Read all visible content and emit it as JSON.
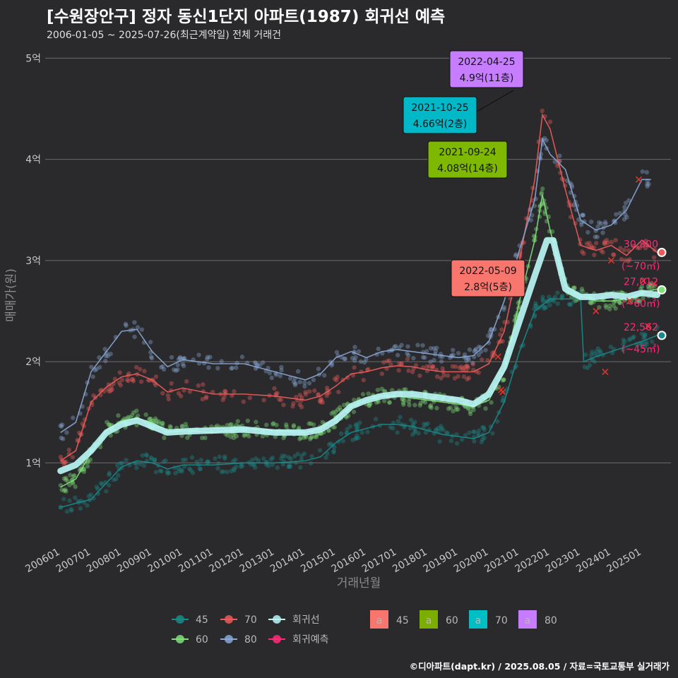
{
  "title": "[수원장안구] 정자 동신1단지 아파트(1987) 회귀선 예측",
  "subtitle": "2006-01-05 ~ 2025-07-26(최근계약일) 전체 거래건",
  "footer": "©디아파트(dapt.kr) / 2025.08.05 / 자료=국토교통부 실거래가",
  "chart_data": {
    "type": "scatter",
    "xlabel": "거래년월",
    "ylabel": "매매가(원)",
    "y_ticks": [
      {
        "v": 1,
        "label": "1억"
      },
      {
        "v": 2,
        "label": "2억"
      },
      {
        "v": 3,
        "label": "3억"
      },
      {
        "v": 4,
        "label": "4억"
      },
      {
        "v": 5,
        "label": "5억"
      }
    ],
    "ylim": [
      0.2,
      5.1
    ],
    "xlim": [
      2005.5,
      2025.95
    ],
    "x_ticks": [
      "200601",
      "200701",
      "200801",
      "200901",
      "201001",
      "201101",
      "201201",
      "201301",
      "201401",
      "201501",
      "201601",
      "201701",
      "201801",
      "201901",
      "202001",
      "202101",
      "202201",
      "202301",
      "202401",
      "202501"
    ],
    "colors": {
      "45": "#1a8a8a",
      "60": "#7fe07a",
      "70": "#ef5b5b",
      "80": "#8aa7d6",
      "trend": "#b8f4f4",
      "forecast": "#ff2a78"
    },
    "series": [
      {
        "name": "45",
        "color": "#1a8a8a",
        "points": [
          [
            2006.0,
            0.56
          ],
          [
            2006.5,
            0.6
          ],
          [
            2007.0,
            0.64
          ],
          [
            2007.5,
            0.8
          ],
          [
            2008.0,
            0.96
          ],
          [
            2008.5,
            1.02
          ],
          [
            2009.0,
            1.0
          ],
          [
            2009.5,
            0.94
          ],
          [
            2010.0,
            0.98
          ],
          [
            2011.0,
            0.98
          ],
          [
            2012.0,
            1.0
          ],
          [
            2013.0,
            1.0
          ],
          [
            2014.0,
            1.02
          ],
          [
            2014.5,
            1.06
          ],
          [
            2015.0,
            1.2
          ],
          [
            2015.5,
            1.3
          ],
          [
            2016.0,
            1.34
          ],
          [
            2016.5,
            1.38
          ],
          [
            2017.0,
            1.38
          ],
          [
            2017.5,
            1.36
          ],
          [
            2018.0,
            1.32
          ],
          [
            2018.5,
            1.28
          ],
          [
            2019.0,
            1.26
          ],
          [
            2019.5,
            1.24
          ],
          [
            2020.0,
            1.3
          ],
          [
            2020.5,
            1.6
          ],
          [
            2021.0,
            2.1
          ],
          [
            2021.5,
            2.5
          ],
          [
            2022.0,
            2.62
          ],
          [
            2022.5,
            2.62
          ],
          [
            2023.0,
            2.62
          ],
          [
            2023.1,
            2.0
          ],
          [
            2023.5,
            2.05
          ],
          [
            2024.0,
            2.1
          ],
          [
            2024.5,
            2.15
          ],
          [
            2025.0,
            2.2
          ],
          [
            2025.5,
            2.26
          ]
        ]
      },
      {
        "name": "60",
        "color": "#7fe07a",
        "points": [
          [
            2006.0,
            0.76
          ],
          [
            2006.5,
            0.84
          ],
          [
            2007.0,
            1.1
          ],
          [
            2007.5,
            1.32
          ],
          [
            2008.0,
            1.42
          ],
          [
            2008.5,
            1.44
          ],
          [
            2009.0,
            1.4
          ],
          [
            2009.5,
            1.3
          ],
          [
            2010.0,
            1.32
          ],
          [
            2011.0,
            1.3
          ],
          [
            2012.0,
            1.34
          ],
          [
            2013.0,
            1.32
          ],
          [
            2014.0,
            1.3
          ],
          [
            2014.5,
            1.34
          ],
          [
            2015.0,
            1.44
          ],
          [
            2015.5,
            1.56
          ],
          [
            2016.0,
            1.62
          ],
          [
            2016.5,
            1.66
          ],
          [
            2017.0,
            1.66
          ],
          [
            2017.5,
            1.64
          ],
          [
            2018.0,
            1.62
          ],
          [
            2018.5,
            1.6
          ],
          [
            2019.0,
            1.58
          ],
          [
            2019.5,
            1.56
          ],
          [
            2020.0,
            1.62
          ],
          [
            2020.5,
            1.9
          ],
          [
            2021.0,
            2.6
          ],
          [
            2021.5,
            3.2
          ],
          [
            2021.75,
            3.65
          ],
          [
            2022.0,
            3.3
          ],
          [
            2022.5,
            2.75
          ],
          [
            2023.0,
            2.65
          ],
          [
            2023.5,
            2.6
          ],
          [
            2024.0,
            2.6
          ],
          [
            2024.5,
            2.62
          ],
          [
            2025.0,
            2.68
          ],
          [
            2025.5,
            2.72
          ]
        ]
      },
      {
        "name": "70",
        "color": "#ef5b5b",
        "points": [
          [
            2006.0,
            1.02
          ],
          [
            2006.5,
            1.12
          ],
          [
            2007.0,
            1.6
          ],
          [
            2007.5,
            1.75
          ],
          [
            2008.0,
            1.85
          ],
          [
            2008.5,
            1.88
          ],
          [
            2009.0,
            1.82
          ],
          [
            2009.5,
            1.7
          ],
          [
            2010.0,
            1.74
          ],
          [
            2011.0,
            1.68
          ],
          [
            2012.0,
            1.68
          ],
          [
            2013.0,
            1.66
          ],
          [
            2014.0,
            1.62
          ],
          [
            2014.5,
            1.66
          ],
          [
            2015.0,
            1.76
          ],
          [
            2015.5,
            1.88
          ],
          [
            2016.0,
            1.9
          ],
          [
            2016.5,
            1.94
          ],
          [
            2017.0,
            1.96
          ],
          [
            2017.5,
            1.95
          ],
          [
            2018.0,
            1.92
          ],
          [
            2018.5,
            1.9
          ],
          [
            2019.0,
            1.9
          ],
          [
            2019.5,
            1.9
          ],
          [
            2020.0,
            1.98
          ],
          [
            2020.5,
            2.3
          ],
          [
            2021.0,
            3.0
          ],
          [
            2021.5,
            3.8
          ],
          [
            2021.75,
            4.44
          ],
          [
            2022.0,
            4.3
          ],
          [
            2022.5,
            3.7
          ],
          [
            2023.0,
            3.15
          ],
          [
            2023.5,
            3.1
          ],
          [
            2024.0,
            3.15
          ],
          [
            2024.5,
            3.05
          ],
          [
            2025.0,
            3.2
          ],
          [
            2025.5,
            3.08
          ]
        ]
      },
      {
        "name": "80",
        "color": "#8aa7d6",
        "points": [
          [
            2006.0,
            1.3
          ],
          [
            2006.5,
            1.4
          ],
          [
            2007.0,
            1.9
          ],
          [
            2007.5,
            2.1
          ],
          [
            2008.0,
            2.3
          ],
          [
            2008.5,
            2.32
          ],
          [
            2009.0,
            2.1
          ],
          [
            2009.5,
            1.95
          ],
          [
            2010.0,
            2.02
          ],
          [
            2011.0,
            1.98
          ],
          [
            2012.0,
            1.98
          ],
          [
            2013.0,
            1.9
          ],
          [
            2014.0,
            1.82
          ],
          [
            2014.5,
            1.88
          ],
          [
            2015.0,
            2.04
          ],
          [
            2015.5,
            2.1
          ],
          [
            2016.0,
            2.04
          ],
          [
            2016.5,
            2.1
          ],
          [
            2017.0,
            2.12
          ],
          [
            2017.5,
            2.1
          ],
          [
            2018.0,
            2.08
          ],
          [
            2018.5,
            2.06
          ],
          [
            2019.0,
            2.04
          ],
          [
            2019.5,
            2.06
          ],
          [
            2020.0,
            2.2
          ],
          [
            2020.5,
            2.6
          ],
          [
            2021.0,
            3.1
          ],
          [
            2021.5,
            3.6
          ],
          [
            2021.75,
            4.2
          ],
          [
            2022.0,
            4.05
          ],
          [
            2022.5,
            3.9
          ],
          [
            2023.0,
            3.4
          ],
          [
            2023.5,
            3.3
          ],
          [
            2024.0,
            3.35
          ],
          [
            2024.5,
            3.5
          ],
          [
            2025.0,
            3.8
          ],
          [
            2025.3,
            3.8
          ]
        ]
      },
      {
        "name": "회귀선",
        "color": "#b8f4f4",
        "points": [
          [
            2006.0,
            0.92
          ],
          [
            2006.5,
            0.98
          ],
          [
            2007.0,
            1.12
          ],
          [
            2007.5,
            1.3
          ],
          [
            2008.0,
            1.38
          ],
          [
            2008.5,
            1.42
          ],
          [
            2009.0,
            1.36
          ],
          [
            2009.5,
            1.3
          ],
          [
            2010.0,
            1.31
          ],
          [
            2011.0,
            1.32
          ],
          [
            2012.0,
            1.33
          ],
          [
            2013.0,
            1.3
          ],
          [
            2014.0,
            1.3
          ],
          [
            2014.5,
            1.33
          ],
          [
            2015.0,
            1.42
          ],
          [
            2015.5,
            1.56
          ],
          [
            2016.0,
            1.62
          ],
          [
            2016.5,
            1.66
          ],
          [
            2017.0,
            1.68
          ],
          [
            2017.5,
            1.68
          ],
          [
            2018.0,
            1.66
          ],
          [
            2018.5,
            1.64
          ],
          [
            2019.0,
            1.62
          ],
          [
            2019.5,
            1.58
          ],
          [
            2020.0,
            1.68
          ],
          [
            2020.5,
            1.95
          ],
          [
            2021.0,
            2.4
          ],
          [
            2021.5,
            2.85
          ],
          [
            2021.9,
            3.2
          ],
          [
            2022.1,
            3.2
          ],
          [
            2022.5,
            2.72
          ],
          [
            2023.0,
            2.64
          ],
          [
            2023.5,
            2.64
          ],
          [
            2024.0,
            2.66
          ],
          [
            2024.5,
            2.64
          ],
          [
            2025.0,
            2.68
          ],
          [
            2025.5,
            2.66
          ]
        ]
      }
    ],
    "forecast": [
      {
        "area": "45",
        "value": "22,562",
        "unit": "(~45㎡)",
        "y": 2.26
      },
      {
        "area": "60",
        "value": "27,012",
        "unit": "(~60㎡)",
        "y": 2.71
      },
      {
        "area": "70",
        "value": "30,800",
        "unit": "(~70㎡)",
        "y": 3.08
      }
    ],
    "annotations": [
      {
        "date": "2022-04-25",
        "price": "4.9억(11층)",
        "color": "#c77dff",
        "x": 2022.3,
        "y": 4.9
      },
      {
        "date": "2021-10-25",
        "price": "4.66억(2층)",
        "color": "#00b8c8",
        "x": 2021.8,
        "y": 4.66
      },
      {
        "date": "2021-09-24",
        "price": "4.08억(14층)",
        "color": "#7fb800",
        "x": 2021.7,
        "y": 4.08
      },
      {
        "date": "2022-05-09",
        "price": "2.8억(5층)",
        "color": "#f8766d",
        "x": 2022.35,
        "y": 2.8
      }
    ],
    "legend": {
      "points": [
        {
          "name": "45",
          "color": "#1a8a8a"
        },
        {
          "name": "70",
          "color": "#ef5b5b"
        },
        {
          "name": "회귀선",
          "color": "#b8f4f4"
        },
        {
          "name": "60",
          "color": "#7fe07a"
        },
        {
          "name": "80",
          "color": "#8aa7d6"
        },
        {
          "name": "회귀예측",
          "color": "#ff2a78"
        }
      ],
      "boxes": [
        {
          "name": "45",
          "color": "#f8766d"
        },
        {
          "name": "60",
          "color": "#7cae00"
        },
        {
          "name": "70",
          "color": "#00bfc4"
        },
        {
          "name": "80",
          "color": "#c77cff"
        }
      ],
      "box_glyph": "a"
    },
    "grid": true
  }
}
